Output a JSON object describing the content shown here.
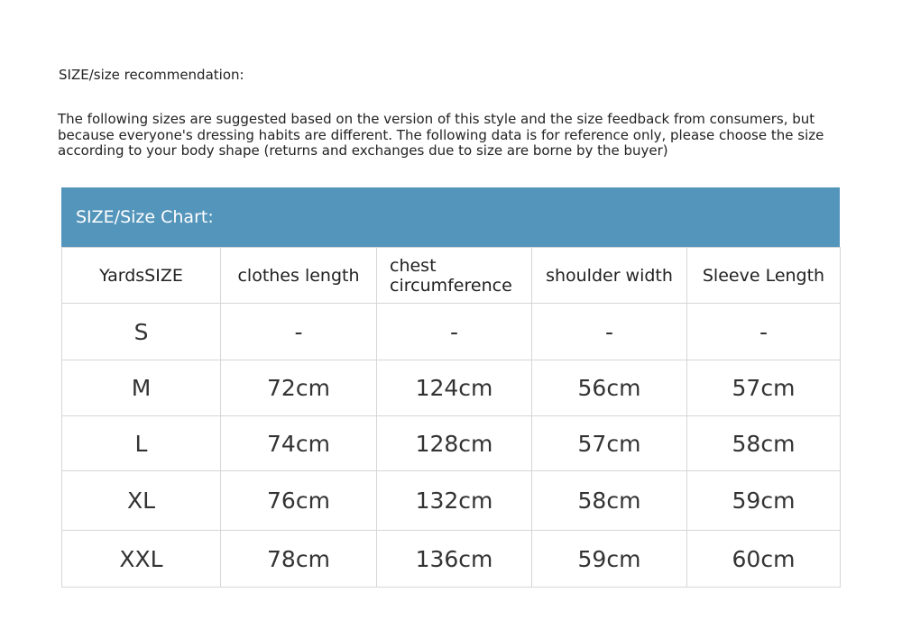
{
  "title": "SIZE/size recommendation:",
  "intro": "The following sizes are suggested based on the version of this style and the size feedback from consumers, but because everyone's dressing habits are different. The following data is for reference only, please choose the size according to your body shape (returns and exchanges due to size are borne by the buyer)",
  "table": {
    "banner": "SIZE/Size Chart:",
    "banner_color": "#5495bb",
    "headers": [
      "YardsSIZE",
      "clothes length",
      "chest circumference",
      "shoulder width",
      "Sleeve Length"
    ],
    "rows": [
      [
        "S",
        "-",
        "-",
        "-",
        "-"
      ],
      [
        "M",
        "72cm",
        "124cm",
        "56cm",
        "57cm"
      ],
      [
        "L",
        "74cm",
        "128cm",
        "57cm",
        "58cm"
      ],
      [
        "XL",
        "76cm",
        "132cm",
        "58cm",
        "59cm"
      ],
      [
        "XXL",
        "78cm",
        "136cm",
        "59cm",
        "60cm"
      ]
    ]
  }
}
